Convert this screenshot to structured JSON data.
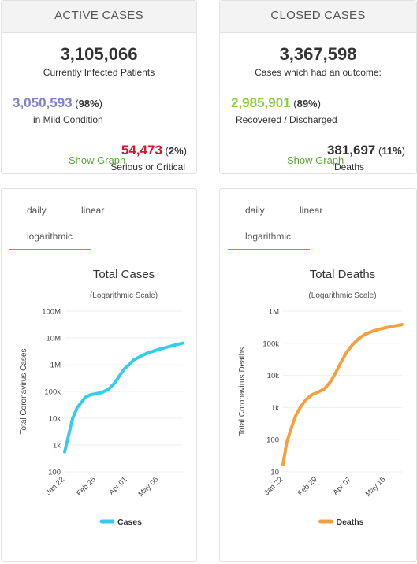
{
  "active": {
    "header": "ACTIVE CASES",
    "total": "3,105,066",
    "total_label": "Currently Infected Patients",
    "mild_value": "3,050,593",
    "mild_pct_open": " (",
    "mild_pct": "98%",
    "mild_pct_close": ")",
    "mild_label": "in Mild Condition",
    "serious_value": "54,473",
    "serious_pct_open": " (",
    "serious_pct": "2%",
    "serious_pct_close": ")",
    "serious_label": "Serious or Critical",
    "show_graph": "Show Graph"
  },
  "closed": {
    "header": "CLOSED CASES",
    "total": "3,367,598",
    "total_label": "Cases which had an outcome:",
    "recovered_value": "2,985,901",
    "recovered_pct_open": " (",
    "recovered_pct": "89%",
    "recovered_pct_close": ")",
    "recovered_label": "Recovered / Discharged",
    "deaths_value": "381,697",
    "deaths_pct_open": " (",
    "deaths_pct": "11%",
    "deaths_pct_close": ")",
    "deaths_label": "Deaths",
    "show_graph": "Show Graph"
  },
  "colors": {
    "mild": "#8080cf",
    "serious": "#e0102d",
    "recovered": "#8acc48",
    "cases_line": "#33ccee",
    "deaths_line": "#f6a03d",
    "tab_active": "#22b5e3",
    "link": "#5aa532"
  },
  "cases_panel": {
    "tabs": [
      {
        "label": "daily"
      },
      {
        "label": "linear"
      },
      {
        "label": "logarithmic"
      }
    ],
    "active_tab": "logarithmic"
  },
  "deaths_panel": {
    "tabs": [
      {
        "label": "daily"
      },
      {
        "label": "linear"
      },
      {
        "label": "logarithmic"
      }
    ],
    "active_tab": "logarithmic"
  },
  "chart_data": [
    {
      "type": "line",
      "title": "Total Cases",
      "subtitle": "(Logarithmic Scale)",
      "ylabel": "Total Coronavirus Cases",
      "xlabel": "",
      "scale": "log",
      "ylim": [
        100,
        100000000
      ],
      "yticks": [
        "100",
        "1k",
        "10k",
        "100k",
        "1M",
        "10M",
        "100M"
      ],
      "xticks": [
        "Jan 22",
        "Feb 26",
        "Apr 01",
        "May 06"
      ],
      "x_range": [
        "Jan 22",
        "Jun 02"
      ],
      "legend": "bottom",
      "series": [
        {
          "name": "Cases",
          "x": [
            "Jan 22",
            "Jan 26",
            "Jan 31",
            "Feb 05",
            "Feb 10",
            "Feb 14",
            "Feb 20",
            "Feb 26",
            "Mar 03",
            "Mar 08",
            "Mar 12",
            "Mar 18",
            "Mar 24",
            "Mar 29",
            "Apr 03",
            "Apr 08",
            "Apr 15",
            "Apr 22",
            "Apr 30",
            "May 08",
            "May 16",
            "May 24",
            "Jun 02"
          ],
          "y": [
            555,
            2000,
            10000,
            25000,
            40000,
            60000,
            76000,
            82000,
            90000,
            108000,
            130000,
            210000,
            420000,
            720000,
            1000000,
            1500000,
            2000000,
            2600000,
            3200000,
            3900000,
            4600000,
            5400000,
            6400000
          ]
        }
      ]
    },
    {
      "type": "line",
      "title": "Total Deaths",
      "subtitle": "(Logarithmic Scale)",
      "ylabel": "Total Coronavirus Deaths",
      "xlabel": "",
      "scale": "log",
      "ylim": [
        10,
        1000000
      ],
      "yticks": [
        "10",
        "100",
        "1k",
        "10k",
        "100k",
        "1M"
      ],
      "xticks": [
        "Jan 22",
        "Feb 29",
        "Apr 07",
        "May 15"
      ],
      "x_range": [
        "Jan 22",
        "Jun 02"
      ],
      "legend": "bottom",
      "series": [
        {
          "name": "Deaths",
          "x": [
            "Jan 22",
            "Jan 26",
            "Jan 31",
            "Feb 05",
            "Feb 10",
            "Feb 16",
            "Feb 23",
            "Mar 01",
            "Mar 08",
            "Mar 15",
            "Mar 21",
            "Mar 27",
            "Apr 02",
            "Apr 08",
            "Apr 15",
            "Apr 22",
            "Apr 30",
            "May 08",
            "May 16",
            "May 24",
            "Jun 02"
          ],
          "y": [
            17,
            80,
            220,
            550,
            1000,
            1700,
            2500,
            3000,
            3800,
            6500,
            13000,
            28000,
            55000,
            90000,
            140000,
            190000,
            235000,
            275000,
            310000,
            345000,
            382000
          ]
        }
      ]
    }
  ]
}
